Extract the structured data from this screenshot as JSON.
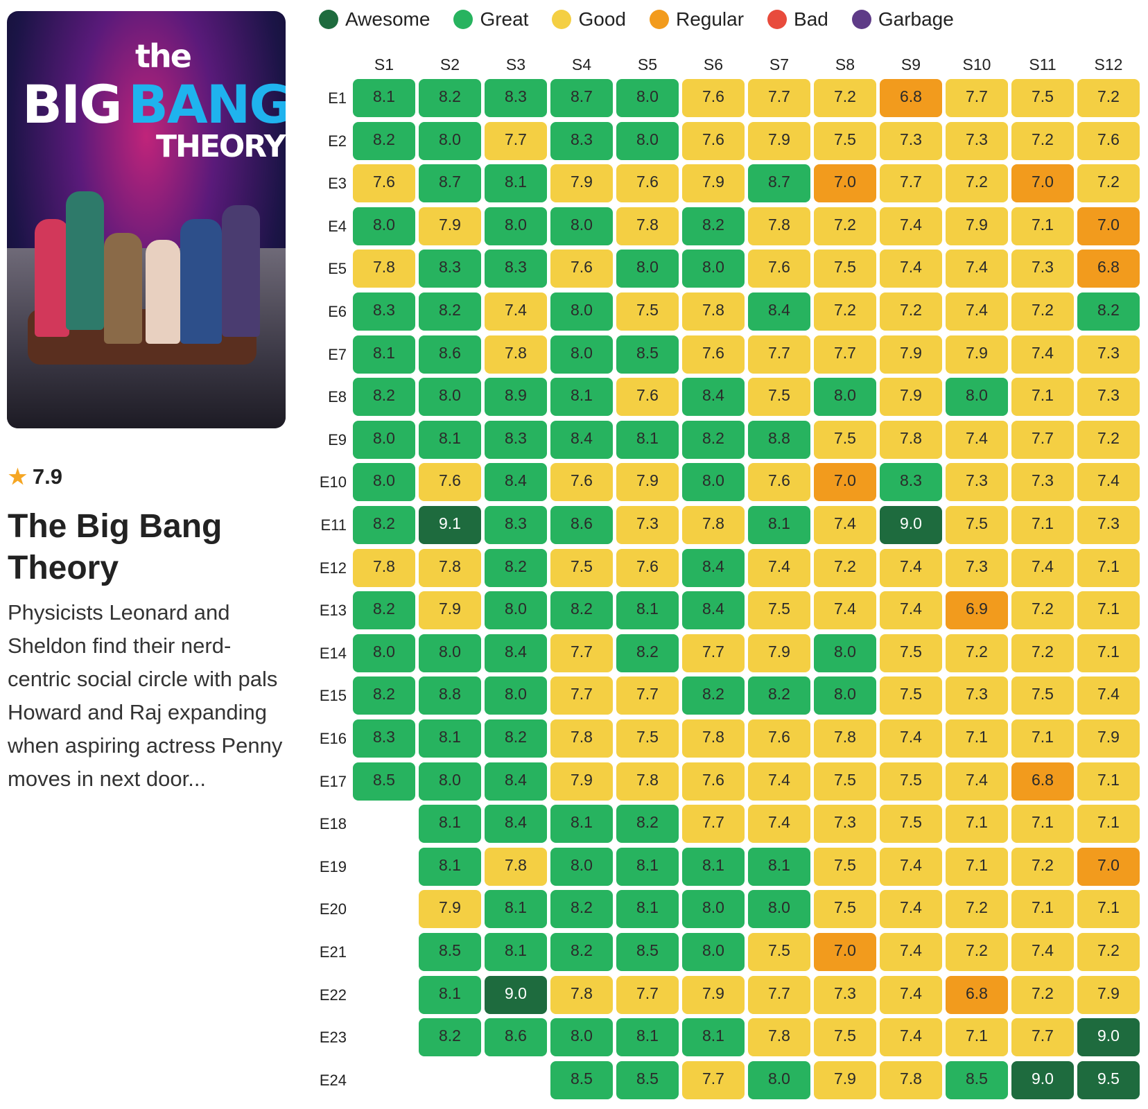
{
  "show": {
    "poster_logo": {
      "line1": "the",
      "line2a": "BIG",
      "line2b": "BANG",
      "line3": "THEORY"
    },
    "rating": "7.9",
    "rating_icon": "star-icon",
    "title": "The Big Bang Theory",
    "description": "Physicists Leonard and Sheldon find their nerd-centric social circle with pals Howard and Raj expanding when aspiring actress Penny moves in next door..."
  },
  "legend": [
    {
      "label": "Awesome",
      "color": "#1e6b3e"
    },
    {
      "label": "Great",
      "color": "#27b35f"
    },
    {
      "label": "Good",
      "color": "#f4cf43"
    },
    {
      "label": "Regular",
      "color": "#f29b1d"
    },
    {
      "label": "Bad",
      "color": "#e84b3c"
    },
    {
      "label": "Garbage",
      "color": "#5e3b87"
    }
  ],
  "chart_data": {
    "type": "heatmap",
    "columns": [
      "S1",
      "S2",
      "S3",
      "S4",
      "S5",
      "S6",
      "S7",
      "S8",
      "S9",
      "S10",
      "S11",
      "S12"
    ],
    "rows": [
      "E1",
      "E2",
      "E3",
      "E4",
      "E5",
      "E6",
      "E7",
      "E8",
      "E9",
      "E10",
      "E11",
      "E12",
      "E13",
      "E14",
      "E15",
      "E16",
      "E17",
      "E18",
      "E19",
      "E20",
      "E21",
      "E22",
      "E23",
      "E24"
    ],
    "values": [
      [
        8.1,
        8.2,
        8.3,
        8.7,
        8.0,
        7.6,
        7.7,
        7.2,
        6.8,
        7.7,
        7.5,
        7.2
      ],
      [
        8.2,
        8.0,
        7.7,
        8.3,
        8.0,
        7.6,
        7.9,
        7.5,
        7.3,
        7.3,
        7.2,
        7.6
      ],
      [
        7.6,
        8.7,
        8.1,
        7.9,
        7.6,
        7.9,
        8.7,
        7.0,
        7.7,
        7.2,
        7.0,
        7.2
      ],
      [
        8.0,
        7.9,
        8.0,
        8.0,
        7.8,
        8.2,
        7.8,
        7.2,
        7.4,
        7.9,
        7.1,
        7.0
      ],
      [
        7.8,
        8.3,
        8.3,
        7.6,
        8.0,
        8.0,
        7.6,
        7.5,
        7.4,
        7.4,
        7.3,
        6.8
      ],
      [
        8.3,
        8.2,
        7.4,
        8.0,
        7.5,
        7.8,
        8.4,
        7.2,
        7.2,
        7.4,
        7.2,
        8.2
      ],
      [
        8.1,
        8.6,
        7.8,
        8.0,
        8.5,
        7.6,
        7.7,
        7.7,
        7.9,
        7.9,
        7.4,
        7.3
      ],
      [
        8.2,
        8.0,
        8.9,
        8.1,
        7.6,
        8.4,
        7.5,
        8.0,
        7.9,
        8.0,
        7.1,
        7.3
      ],
      [
        8.0,
        8.1,
        8.3,
        8.4,
        8.1,
        8.2,
        8.8,
        7.5,
        7.8,
        7.4,
        7.7,
        7.2
      ],
      [
        8.0,
        7.6,
        8.4,
        7.6,
        7.9,
        8.0,
        7.6,
        7.0,
        8.3,
        7.3,
        7.3,
        7.4
      ],
      [
        8.2,
        9.1,
        8.3,
        8.6,
        7.3,
        7.8,
        8.1,
        7.4,
        9.0,
        7.5,
        7.1,
        7.3
      ],
      [
        7.8,
        7.8,
        8.2,
        7.5,
        7.6,
        8.4,
        7.4,
        7.2,
        7.4,
        7.3,
        7.4,
        7.1
      ],
      [
        8.2,
        7.9,
        8.0,
        8.2,
        8.1,
        8.4,
        7.5,
        7.4,
        7.4,
        6.9,
        7.2,
        7.1
      ],
      [
        8.0,
        8.0,
        8.4,
        7.7,
        8.2,
        7.7,
        7.9,
        8.0,
        7.5,
        7.2,
        7.2,
        7.1
      ],
      [
        8.2,
        8.8,
        8.0,
        7.7,
        7.7,
        8.2,
        8.2,
        8.0,
        7.5,
        7.3,
        7.5,
        7.4
      ],
      [
        8.3,
        8.1,
        8.2,
        7.8,
        7.5,
        7.8,
        7.6,
        7.8,
        7.4,
        7.1,
        7.1,
        7.9
      ],
      [
        8.5,
        8.0,
        8.4,
        7.9,
        7.8,
        7.6,
        7.4,
        7.5,
        7.5,
        7.4,
        6.8,
        7.1
      ],
      [
        null,
        8.1,
        8.4,
        8.1,
        8.2,
        7.7,
        7.4,
        7.3,
        7.5,
        7.1,
        7.1,
        7.1
      ],
      [
        null,
        8.1,
        7.8,
        8.0,
        8.1,
        8.1,
        8.1,
        7.5,
        7.4,
        7.1,
        7.2,
        7.0
      ],
      [
        null,
        7.9,
        8.1,
        8.2,
        8.1,
        8.0,
        8.0,
        7.5,
        7.4,
        7.2,
        7.1,
        7.1
      ],
      [
        null,
        8.5,
        8.1,
        8.2,
        8.5,
        8.0,
        7.5,
        7.0,
        7.4,
        7.2,
        7.4,
        7.2
      ],
      [
        null,
        8.1,
        9.0,
        7.8,
        7.7,
        7.9,
        7.7,
        7.3,
        7.4,
        6.8,
        7.2,
        7.9
      ],
      [
        null,
        8.2,
        8.6,
        8.0,
        8.1,
        8.1,
        7.8,
        7.5,
        7.4,
        7.1,
        7.7,
        9.0
      ],
      [
        null,
        null,
        null,
        8.5,
        8.5,
        7.7,
        8.0,
        7.9,
        7.8,
        8.5,
        9.0,
        9.5
      ]
    ],
    "regular_cells": [
      [
        0,
        8
      ],
      [
        2,
        7
      ],
      [
        2,
        10
      ],
      [
        3,
        11
      ],
      [
        4,
        11
      ],
      [
        9,
        7
      ],
      [
        12,
        9
      ],
      [
        16,
        10
      ],
      [
        18,
        11
      ],
      [
        20,
        7
      ],
      [
        21,
        9
      ]
    ],
    "legend_placement": "top"
  }
}
